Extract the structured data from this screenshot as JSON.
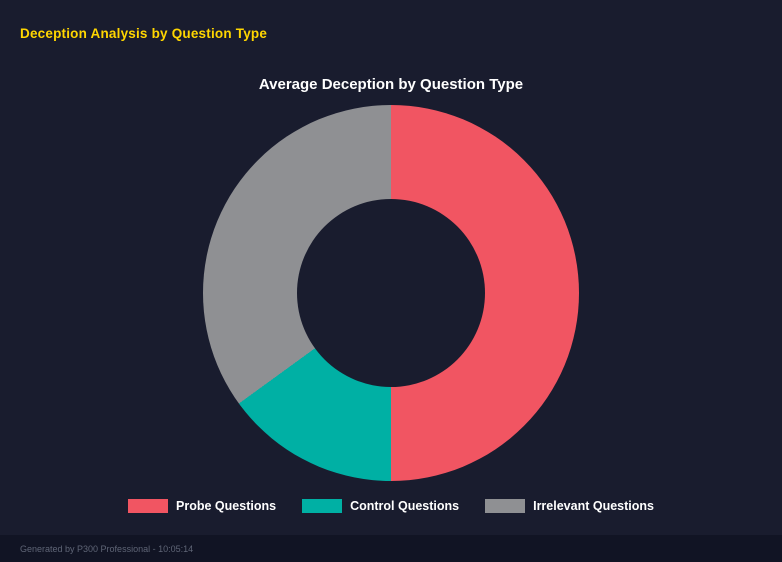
{
  "page": {
    "title": "Deception Analysis by Question Type",
    "footer": "Generated by P300 Professional - 10:05:14"
  },
  "chart_data": {
    "type": "pie",
    "variant": "donut",
    "title": "Average Deception by Question Type",
    "labels": [
      "Probe Questions",
      "Control Questions",
      "Irrelevant Questions"
    ],
    "values": [
      50,
      15,
      35
    ],
    "units": "percent-share (estimated from slice angles)",
    "colors": [
      "#f15562",
      "#00b0a4",
      "#8f9093"
    ],
    "start_angle_deg": 0,
    "direction": "clockwise",
    "hole_ratio": 0.5,
    "legend_position": "bottom",
    "grid": false
  },
  "colors": {
    "background": "#191c2e",
    "footer_background": "#111424",
    "title": "#ffd600",
    "chart_title": "#ffffff",
    "legend_text": "#ffffff",
    "footer_text": "#5f6576"
  }
}
